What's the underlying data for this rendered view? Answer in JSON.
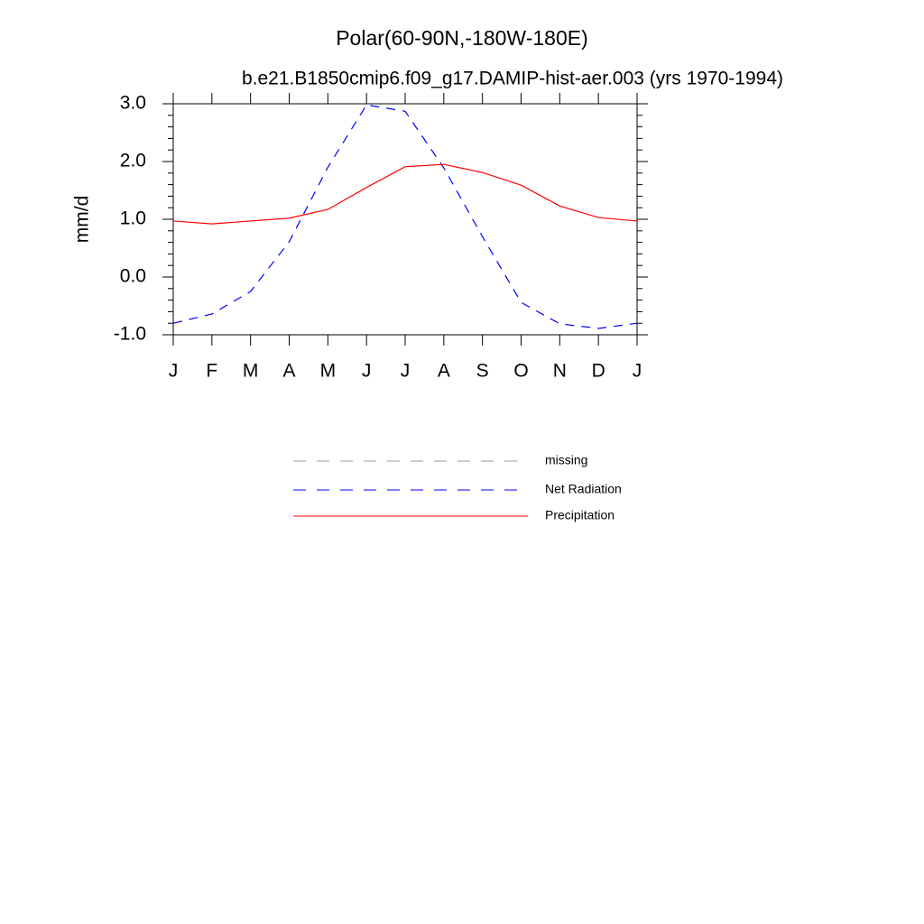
{
  "chart_data": {
    "type": "line",
    "title": "Polar(60-90N,-180W-180E)",
    "subtitle": "b.e21.B1850cmip6.f09_g17.DAMIP-hist-aer.003 (yrs 1970-1994)",
    "y_label": "mm/d",
    "categories": [
      "J",
      "F",
      "M",
      "A",
      "M",
      "J",
      "J",
      "A",
      "S",
      "O",
      "N",
      "D",
      "J"
    ],
    "series": [
      {
        "name": "missing",
        "color": "#999999",
        "dashed": true,
        "values": [
          null,
          null,
          null,
          null,
          null,
          null,
          null,
          null,
          null,
          null,
          null,
          null,
          null
        ]
      },
      {
        "name": "Net Radiation",
        "color": "#0000ff",
        "dashed": true,
        "values": [
          -0.8,
          -0.64,
          -0.25,
          0.61,
          1.9,
          2.98,
          2.87,
          1.89,
          0.7,
          -0.44,
          -0.81,
          -0.89,
          -0.8
        ]
      },
      {
        "name": "Precipitation",
        "color": "#ff0000",
        "dashed": false,
        "values": [
          0.97,
          0.92,
          0.97,
          1.02,
          1.17,
          1.55,
          1.91,
          1.95,
          1.81,
          1.59,
          1.23,
          1.03,
          0.97
        ]
      }
    ],
    "ylim": [
      -1,
      3
    ],
    "yticks": [
      {
        "value": -1,
        "label": "-1.0"
      },
      {
        "value": 0,
        "label": "0.0"
      },
      {
        "value": 1,
        "label": "1.0"
      },
      {
        "value": 2,
        "label": "2.0"
      },
      {
        "value": 3,
        "label": "3.0"
      }
    ]
  }
}
